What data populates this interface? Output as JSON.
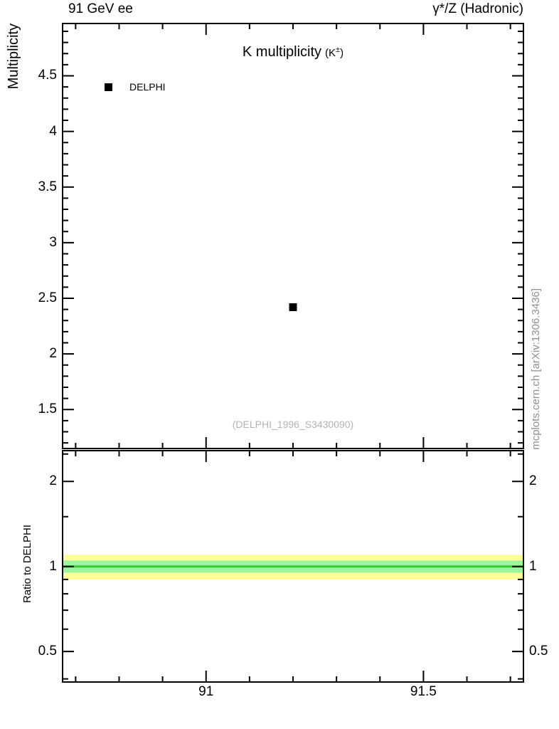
{
  "header": {
    "left": "91 GeV ee",
    "right": "γ*/Z (Hadronic)"
  },
  "title": {
    "main": "K multiplicity",
    "paren_open": "(K",
    "sup": "±",
    "paren_close": ")"
  },
  "legend": {
    "items": [
      {
        "label": "DELPHI",
        "marker": "filled-square",
        "color": "#000000"
      }
    ]
  },
  "reference": "(DELPHI_1996_S3430090)",
  "watermark": "mcplots.cern.ch [arXiv:1306.3436]",
  "chart_data": {
    "type": "scatter",
    "title": "K multiplicity (K±)",
    "xlim": [
      90.67,
      91.73
    ],
    "xticks_major": [
      91,
      91.5
    ],
    "xticks_minor_step": 0.1,
    "top_panel": {
      "ylabel": "Multiplicity",
      "yscale": "linear",
      "ylim": [
        1.15,
        4.97
      ],
      "yticks_major": [
        1.5,
        2,
        2.5,
        3,
        3.5,
        4,
        4.5
      ],
      "yticks_minor_step": 0.1,
      "series": [
        {
          "name": "DELPHI",
          "marker": "square",
          "color": "#000000",
          "points": [
            {
              "x": 91.2,
              "y": 2.42
            }
          ]
        }
      ]
    },
    "ratio_panel": {
      "ylabel": "Ratio to DELPHI",
      "yscale": "log",
      "ylim": [
        0.39,
        2.57
      ],
      "yticks_major": [
        0.5,
        1,
        2
      ],
      "yticks_minor": [
        0.4,
        0.6,
        0.7,
        0.8,
        0.9,
        1.5,
        2.5
      ],
      "bands": [
        {
          "name": "outer-band",
          "range": [
            0.9,
            1.1
          ],
          "color": "#ffff99"
        },
        {
          "name": "inner-band",
          "range": [
            0.95,
            1.05
          ],
          "color": "#9df59d"
        }
      ],
      "ratio_line": {
        "y": 1.0,
        "color": "#33cc33"
      }
    }
  }
}
